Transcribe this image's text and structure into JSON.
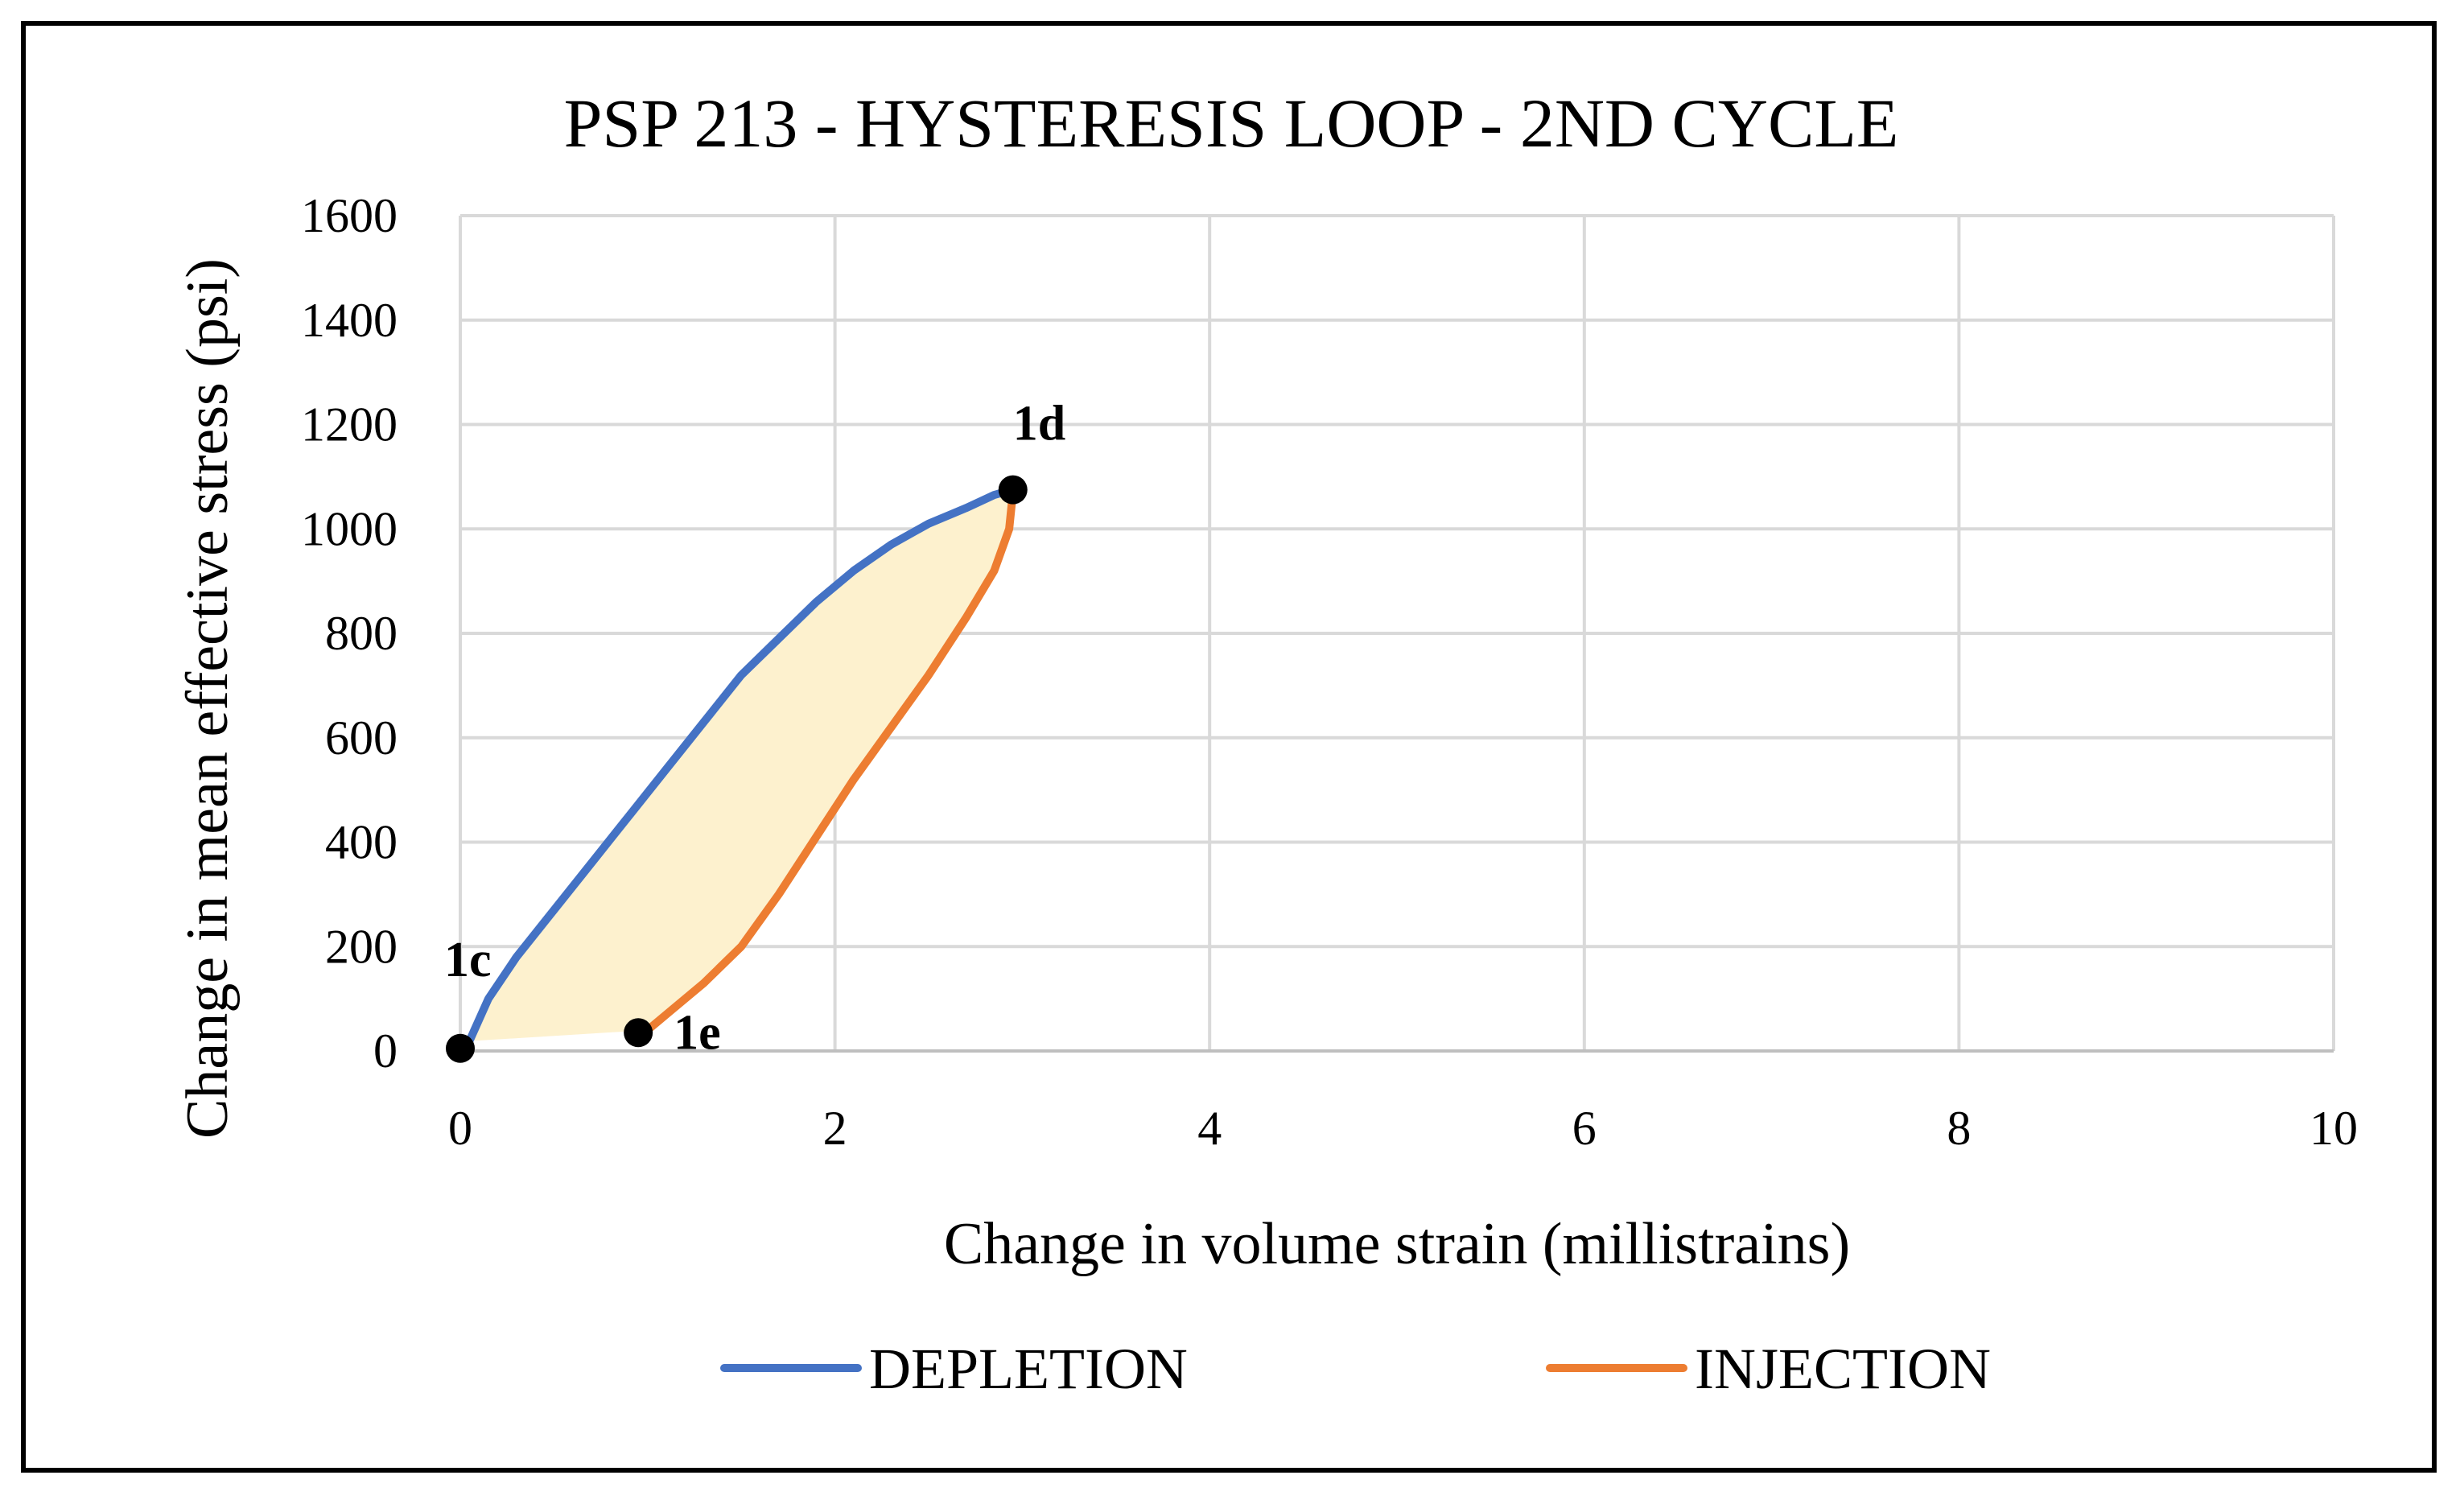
{
  "chart_data": {
    "type": "line",
    "title": "PSP 213 - HYSTERESIS LOOP - 2ND CYCLE",
    "xlabel": "Change in volume strain (millistrains)",
    "ylabel": "Change in mean effective stress (psi)",
    "xlim": [
      0,
      10
    ],
    "ylim": [
      0,
      1600
    ],
    "x_ticks": [
      0,
      2,
      4,
      6,
      8,
      10
    ],
    "y_ticks": [
      0,
      200,
      400,
      600,
      800,
      1000,
      1200,
      1400,
      1600
    ],
    "grid": true,
    "legend_position": "bottom",
    "series": [
      {
        "name": "DEPLETION",
        "color": "#4472C4",
        "x": [
          0.05,
          0.15,
          0.3,
          0.5,
          0.7,
          0.9,
          1.1,
          1.3,
          1.5,
          1.7,
          1.9,
          2.1,
          2.3,
          2.5,
          2.7,
          2.85,
          2.95
        ],
        "y": [
          20,
          100,
          180,
          270,
          360,
          450,
          540,
          630,
          720,
          790,
          860,
          920,
          970,
          1010,
          1040,
          1065,
          1075
        ]
      },
      {
        "name": "INJECTION",
        "color": "#ED7D31",
        "x": [
          2.95,
          2.93,
          2.85,
          2.7,
          2.5,
          2.3,
          2.1,
          1.9,
          1.7,
          1.5,
          1.3,
          1.1,
          1.0
        ],
        "y": [
          1070,
          1000,
          920,
          830,
          720,
          620,
          520,
          410,
          300,
          200,
          130,
          70,
          40
        ]
      }
    ],
    "annotations": [
      {
        "label": "1c",
        "x": 0.0,
        "y": 5
      },
      {
        "label": "1d",
        "x": 2.95,
        "y": 1075
      },
      {
        "label": "1e",
        "x": 0.95,
        "y": 35
      }
    ],
    "fill_color": "#FDF1CE"
  }
}
